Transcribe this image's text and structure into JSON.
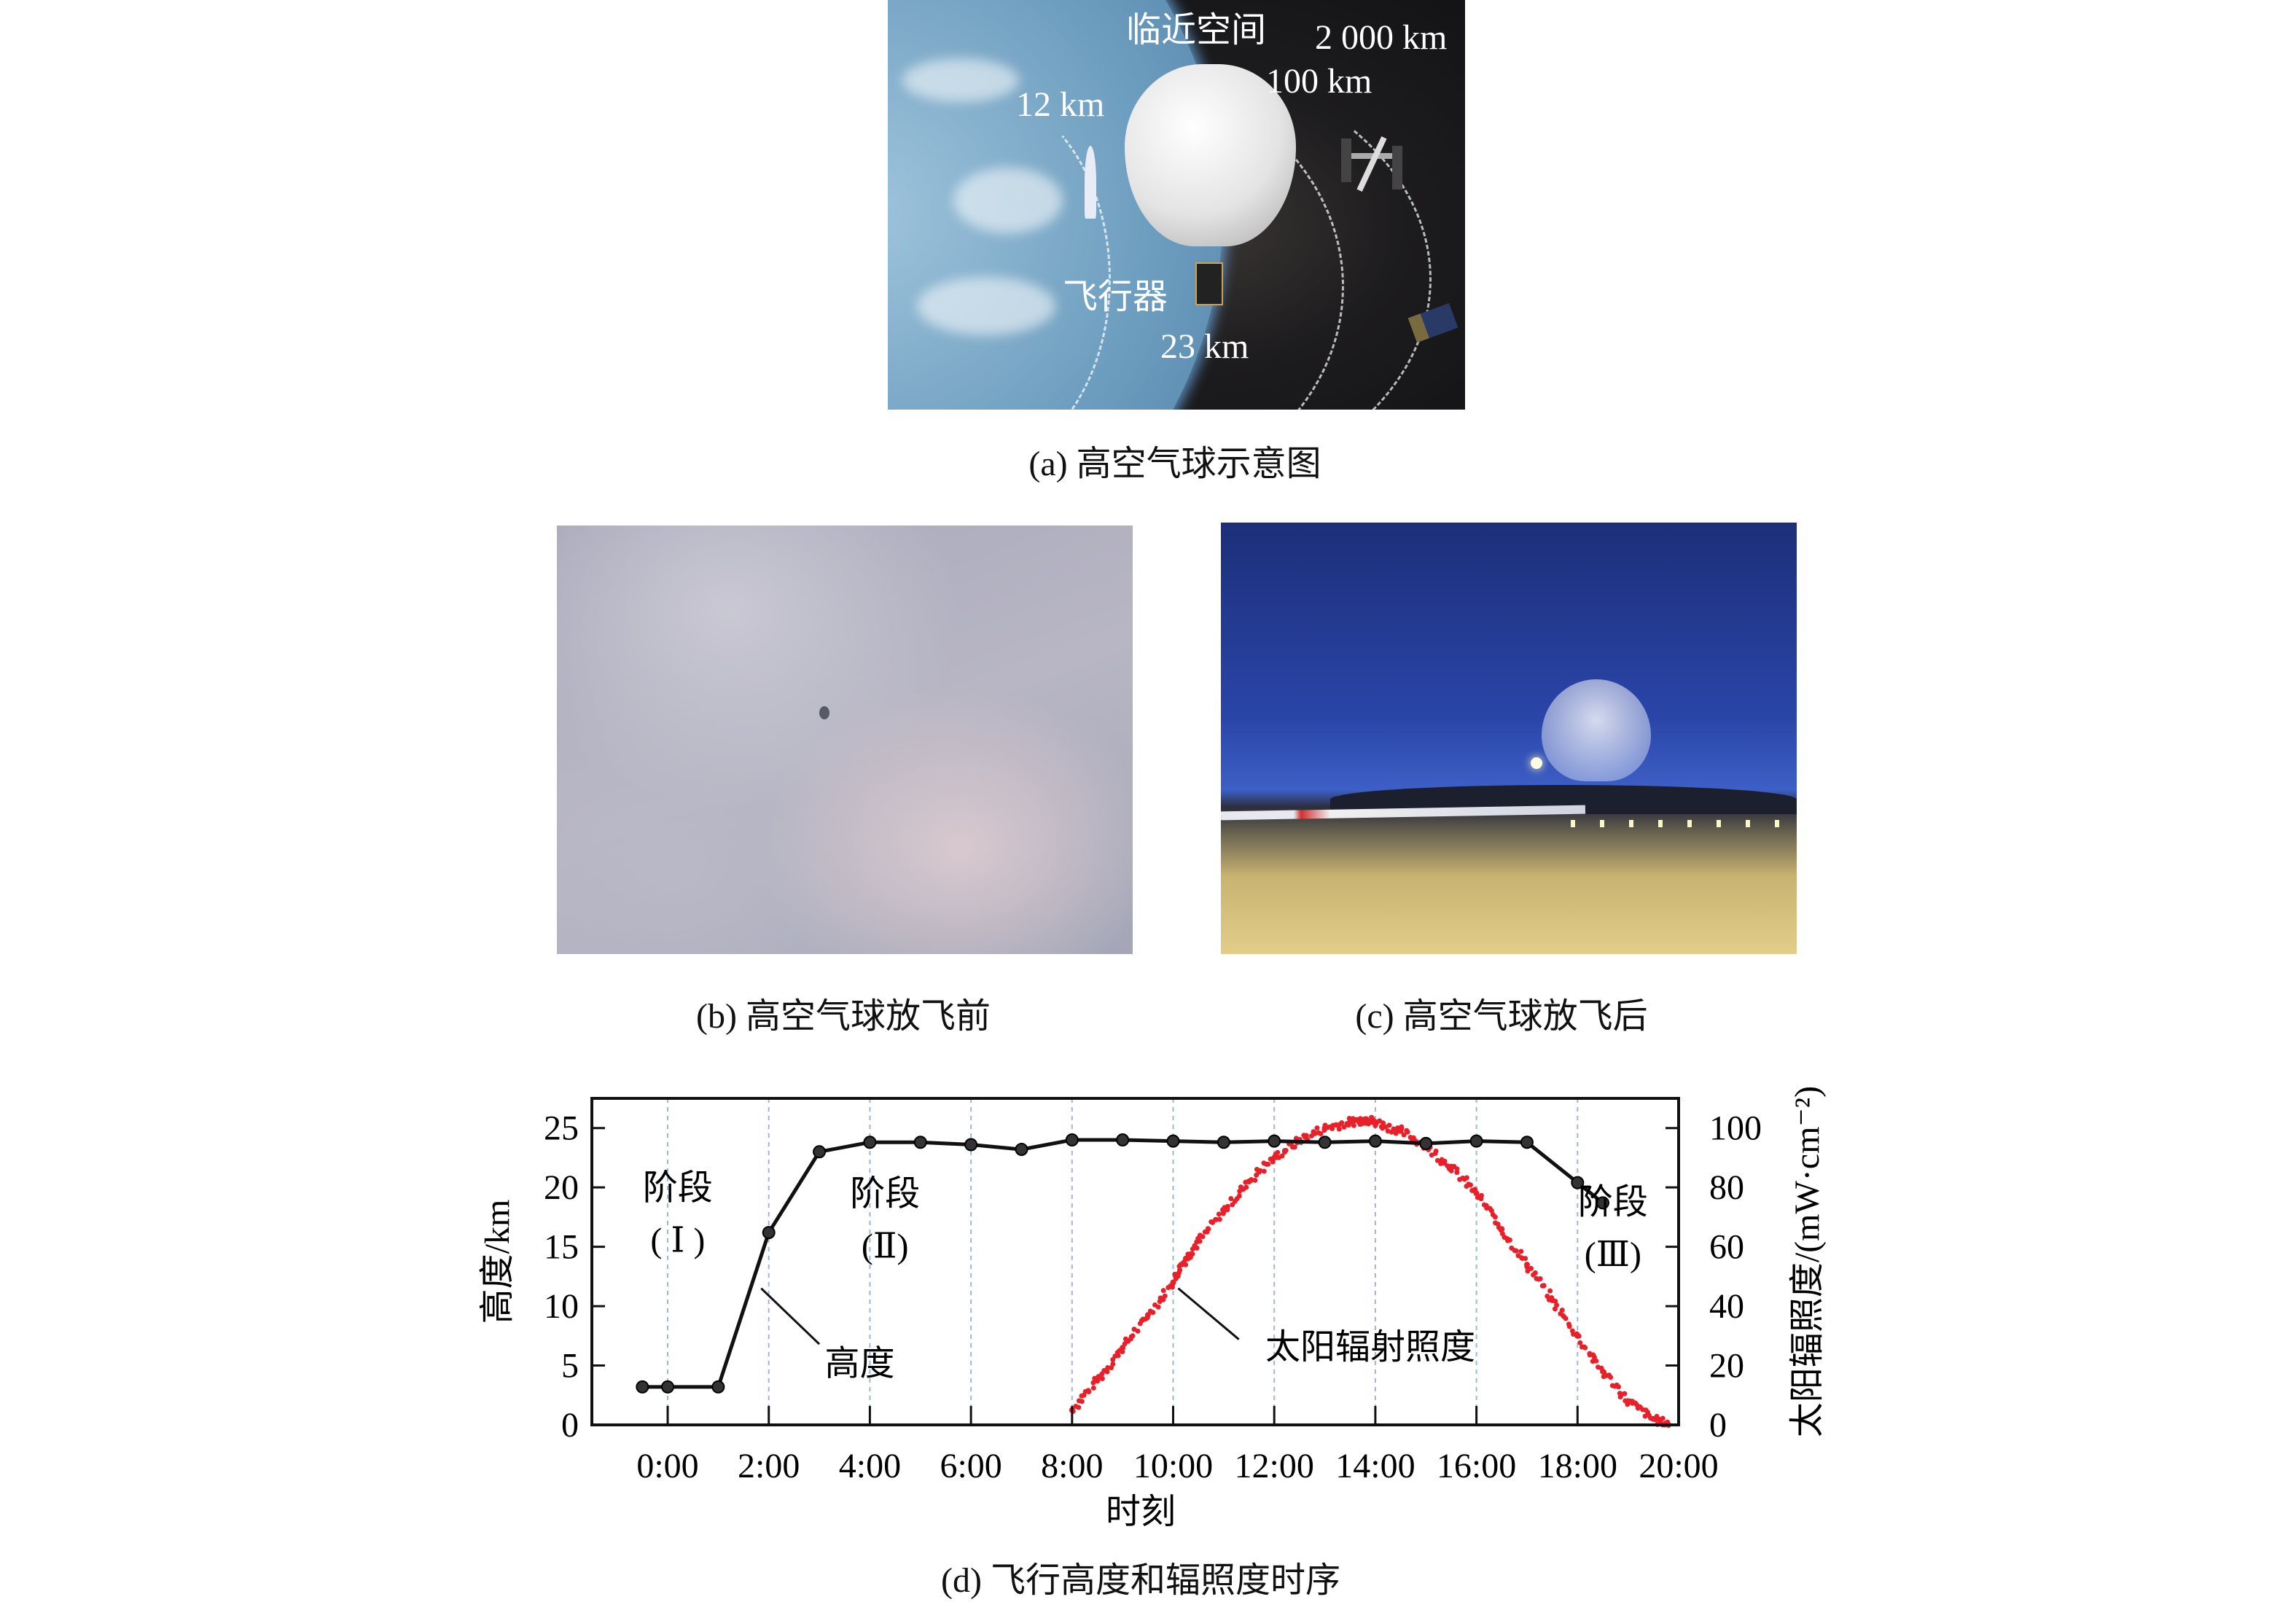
{
  "panel_a": {
    "labels": {
      "near_space": "临近空间",
      "alt_2000": "2 000 km",
      "alt_100": "100 km",
      "alt_12": "12 km",
      "aircraft": "飞行器",
      "alt_23": "23 km"
    },
    "caption": "(a) 高空气球示意图"
  },
  "panel_b": {
    "caption": "(b) 高空气球放飞前"
  },
  "panel_c": {
    "caption": "(c) 高空气球放飞后"
  },
  "panel_d": {
    "caption": "(d) 飞行高度和辐照度时序"
  },
  "chart_data": {
    "type": "line+scatter",
    "xlabel": "时刻",
    "ylabel_left": "高度/km",
    "ylabel_right": "太阳辐照度/(mW·cm⁻²)",
    "xlim_hours": [
      -1.5,
      20
    ],
    "x_ticks": [
      {
        "v": 0,
        "label": "0:00"
      },
      {
        "v": 2,
        "label": "2:00"
      },
      {
        "v": 4,
        "label": "4:00"
      },
      {
        "v": 6,
        "label": "6:00"
      },
      {
        "v": 8,
        "label": "8:00"
      },
      {
        "v": 10,
        "label": "10:00"
      },
      {
        "v": 12,
        "label": "12:00"
      },
      {
        "v": 14,
        "label": "14:00"
      },
      {
        "v": 16,
        "label": "16:00"
      },
      {
        "v": 18,
        "label": "18:00"
      },
      {
        "v": 20,
        "label": "20:00"
      }
    ],
    "ylim_left": [
      0,
      27.5
    ],
    "y_ticks_left": [
      "0",
      "5",
      "10",
      "15",
      "20",
      "25"
    ],
    "ylim_right": [
      0,
      110
    ],
    "y_ticks_right": [
      "0",
      "20",
      "40",
      "60",
      "80",
      "100"
    ],
    "grid": "vertical dashed at x ticks",
    "colors": {
      "altitude": "#111111",
      "irradiance": "#e8202a",
      "grid": "#9fb6d6"
    },
    "series": [
      {
        "name": "高度",
        "axis": "left",
        "kind": "line-markers",
        "x": [
          -0.5,
          0,
          1,
          2,
          3,
          4,
          5,
          6,
          7,
          8,
          9,
          10,
          11,
          12,
          13,
          14,
          15,
          16,
          17,
          18,
          18.5
        ],
        "y": [
          3.2,
          3.2,
          3.2,
          16.2,
          23.0,
          23.8,
          23.8,
          23.6,
          23.2,
          24.0,
          24.0,
          23.9,
          23.8,
          23.9,
          23.8,
          23.9,
          23.7,
          23.9,
          23.8,
          20.4,
          18.7
        ]
      },
      {
        "name": "太阳辐射照度",
        "axis": "right",
        "kind": "scatter",
        "x": [
          8.0,
          8.5,
          9.0,
          9.5,
          10.0,
          10.25,
          10.5,
          11.0,
          11.5,
          12.0,
          12.5,
          13.0,
          13.5,
          13.8,
          14.0,
          14.5,
          15.0,
          15.5,
          16.0,
          16.5,
          17.0,
          17.5,
          18.0,
          18.5,
          19.0,
          19.5,
          19.8
        ],
        "y": [
          5,
          15,
          26,
          37,
          48,
          56,
          62,
          72,
          82,
          90,
          96,
          100,
          102,
          103,
          102,
          99,
          94,
          87,
          78,
          66,
          54,
          42,
          30,
          18,
          8,
          2,
          0
        ]
      }
    ],
    "annotations": [
      {
        "line1": "阶段",
        "line2": "( Ⅰ )"
      },
      {
        "line1": "阶段",
        "line2": "(Ⅱ)"
      },
      {
        "line1": "阶段",
        "line2": "(Ⅲ)"
      },
      {
        "text": "高度"
      },
      {
        "text": "太阳辐射照度"
      }
    ]
  }
}
